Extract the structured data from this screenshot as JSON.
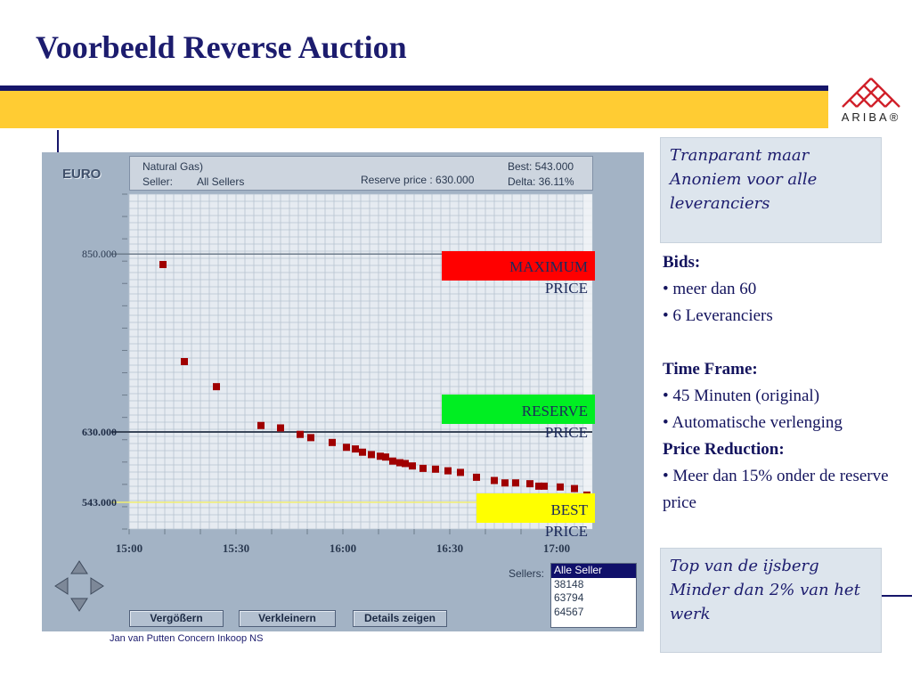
{
  "slide": {
    "title": "Voorbeeld Reverse Auction",
    "footer": "Jan van Putten Concern Inkoop NS",
    "logo_text": "ARIBA®"
  },
  "auction": {
    "currency": "EURO",
    "commodity": "Natural Gas)",
    "seller_label": "Seller:",
    "seller_value": "All Sellers",
    "reserve_text": "Reserve price :  630.000",
    "best_text": "Best: 543.000",
    "delta_text": "Delta: 36.11%"
  },
  "chart_data": {
    "type": "scatter",
    "x_ticks": [
      "15:00",
      "15:30",
      "16:00",
      "16:30",
      "17:00"
    ],
    "x_tick_minutes": [
      0,
      30,
      60,
      90,
      120
    ],
    "xlim_minutes": [
      0,
      130
    ],
    "y_ticks": [
      "850.000",
      "630.000",
      "543.000"
    ],
    "y_tick_values": [
      850,
      630,
      543
    ],
    "ylim": [
      510,
      924
    ],
    "grid": true,
    "series": [
      {
        "color": "#a00000",
        "points": [
          [
            9.5,
            837
          ],
          [
            15.5,
            717
          ],
          [
            24.5,
            686
          ],
          [
            37,
            638
          ],
          [
            42.5,
            635
          ],
          [
            48,
            627
          ],
          [
            51,
            623
          ],
          [
            57,
            617
          ],
          [
            61,
            611
          ],
          [
            63.5,
            609
          ],
          [
            65.5,
            605
          ],
          [
            68,
            602
          ],
          [
            70.5,
            600
          ],
          [
            72,
            599
          ],
          [
            74,
            594
          ],
          [
            76,
            592
          ],
          [
            77.5,
            591
          ],
          [
            79.5,
            588
          ],
          [
            82.5,
            585
          ],
          [
            86,
            584
          ],
          [
            89.5,
            582
          ],
          [
            93,
            580
          ],
          [
            97.5,
            574
          ],
          [
            102.5,
            570
          ],
          [
            105.5,
            567
          ],
          [
            108.5,
            567
          ],
          [
            112.5,
            566
          ],
          [
            115,
            563
          ],
          [
            116.5,
            563
          ],
          [
            121,
            562
          ],
          [
            125,
            560
          ],
          [
            128.5,
            552
          ]
        ]
      }
    ],
    "reference_lines": [
      {
        "name": "MAXIMUM PRICE",
        "value": 850,
        "color": "#6e7c8c"
      },
      {
        "name": "RESERVE PRICE",
        "value": 630,
        "color": "#3a4658"
      },
      {
        "name": "BEST PRICE",
        "value": 543,
        "color": "#f0ee70"
      }
    ]
  },
  "markers": {
    "maximum": {
      "line1": "MAXIMUM",
      "line2": "PRICE",
      "color": "#ff0000"
    },
    "reserve": {
      "line1": "RESERVE",
      "line2": "PRICE",
      "color": "#00ee22"
    },
    "best": {
      "line1": "BEST",
      "line2": "PRICE",
      "color": "#ffff00"
    }
  },
  "sellers": {
    "label": "Sellers:",
    "items": [
      "Alle Seller",
      "38148",
      "63794",
      "64567"
    ],
    "selected_index": 0
  },
  "buttons": {
    "zoom_in": "Vergößern",
    "zoom_out": "Verkleinern",
    "details": "Details zeigen"
  },
  "callouts": {
    "top": "Tranparant maar Anoniem voor alle leveranciers",
    "bottom": "Top van de ijsberg Minder dan 2% van het werk"
  },
  "info": {
    "bids_head": "Bids:",
    "bids_1": "meer dan 60",
    "bids_2": "6 Leveranciers",
    "time_head": "Time Frame:",
    "time_1": "45 Minuten (original)",
    "time_2": "Automatische verlenging",
    "price_head": "Price Reduction:",
    "price_1": "Meer dan 15% onder de reserve price"
  }
}
